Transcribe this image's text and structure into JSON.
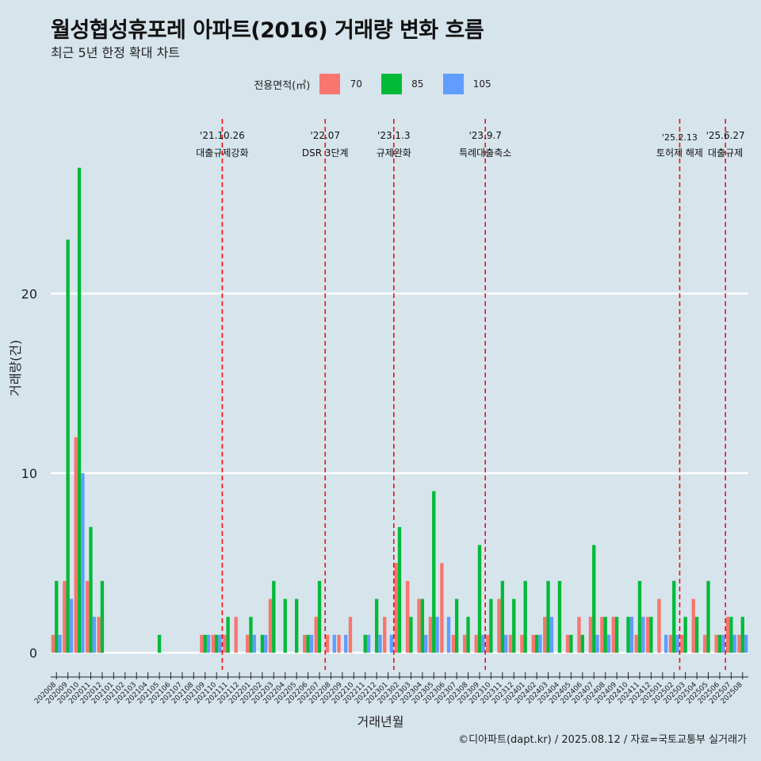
{
  "title": "월성협성휴포레 아파트(2016) 거래량 변화 흐름",
  "subtitle": "최근 5년 한정 확대 차트",
  "caption": "©디아파트(dapt.kr) / 2025.08.12 / 자료=국토교통부 실거래가",
  "legend_title": "전용면적(㎡)",
  "colors": {
    "70": "#f8766d",
    "85": "#00ba38",
    "105": "#619cff",
    "grid": "#ffffff",
    "vline": "#ee1111",
    "background": "#d6e4ec"
  },
  "chart_data": {
    "type": "bar",
    "xlabel": "거래년월",
    "ylabel": "거래량(건)",
    "yticks": [
      0,
      10,
      20
    ],
    "ylim": [
      -1,
      28
    ],
    "grid": true,
    "legend_position": "top",
    "categories": [
      "202008",
      "202009",
      "202010",
      "202011",
      "202012",
      "202101",
      "202102",
      "202103",
      "202104",
      "202105",
      "202106",
      "202107",
      "202108",
      "202109",
      "202110",
      "202111",
      "202112",
      "202201",
      "202202",
      "202203",
      "202204",
      "202205",
      "202206",
      "202207",
      "202208",
      "202209",
      "202210",
      "202211",
      "202212",
      "202301",
      "202302",
      "202303",
      "202304",
      "202305",
      "202306",
      "202307",
      "202308",
      "202309",
      "202310",
      "202311",
      "202312",
      "202401",
      "202402",
      "202403",
      "202404",
      "202405",
      "202406",
      "202407",
      "202408",
      "202409",
      "202410",
      "202411",
      "202412",
      "202501",
      "202502",
      "202503",
      "202504",
      "202505",
      "202506",
      "202507",
      "202508"
    ],
    "series": [
      {
        "name": "70",
        "values": [
          1,
          4,
          12,
          4,
          2,
          0,
          0,
          0,
          0,
          0,
          0,
          0,
          0,
          1,
          1,
          1,
          2,
          1,
          0,
          3,
          0,
          0,
          1,
          2,
          1,
          1,
          2,
          0,
          0,
          2,
          5,
          4,
          3,
          2,
          5,
          1,
          1,
          1,
          1,
          3,
          1,
          1,
          1,
          2,
          0,
          1,
          2,
          2,
          2,
          2,
          0,
          1,
          2,
          3,
          1,
          1,
          3,
          1,
          1,
          2,
          1
        ]
      },
      {
        "name": "85",
        "values": [
          4,
          23,
          27,
          7,
          4,
          0,
          0,
          0,
          0,
          1,
          0,
          0,
          0,
          1,
          1,
          2,
          0,
          2,
          1,
          4,
          3,
          3,
          1,
          4,
          0,
          0,
          0,
          1,
          3,
          0,
          7,
          2,
          3,
          9,
          0,
          3,
          2,
          6,
          3,
          4,
          3,
          4,
          1,
          4,
          4,
          1,
          1,
          6,
          2,
          2,
          2,
          4,
          2,
          0,
          4,
          2,
          2,
          4,
          1,
          2,
          2
        ]
      },
      {
        "name": "105",
        "values": [
          1,
          3,
          10,
          2,
          0,
          0,
          0,
          0,
          0,
          0,
          0,
          0,
          0,
          1,
          1,
          0,
          0,
          1,
          1,
          0,
          0,
          0,
          1,
          0,
          1,
          1,
          0,
          1,
          1,
          1,
          0,
          0,
          1,
          2,
          2,
          0,
          0,
          1,
          0,
          1,
          0,
          0,
          1,
          2,
          0,
          0,
          0,
          1,
          1,
          0,
          2,
          2,
          0,
          1,
          1,
          0,
          0,
          0,
          1,
          1,
          1
        ]
      }
    ],
    "events": [
      {
        "date": "'21.10.26",
        "label": "대출규제강화",
        "after": "202110"
      },
      {
        "date": "'22.07",
        "label": "DSR 3단계",
        "after": "202207"
      },
      {
        "date": "'23.1.3",
        "label": "규제완화",
        "after": "202301"
      },
      {
        "date": "'23.9.7",
        "label": "특례대출축소",
        "after": "202309"
      },
      {
        "date": "'25.2.13",
        "label": "토허제 해제",
        "after": "202502"
      },
      {
        "date": "'25.6.27",
        "label": "대출규제",
        "after": "202506"
      }
    ]
  }
}
